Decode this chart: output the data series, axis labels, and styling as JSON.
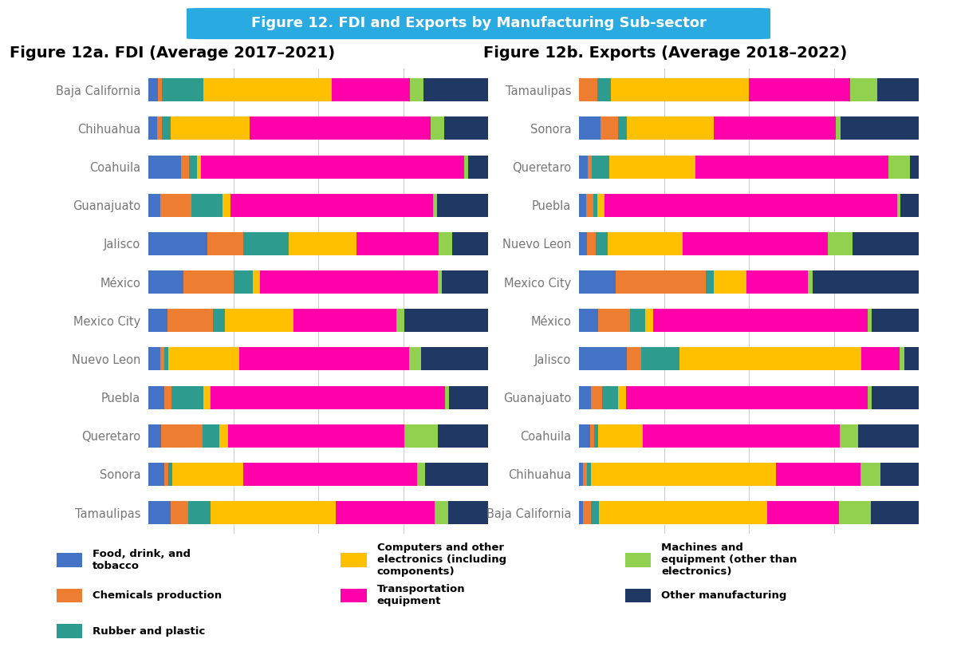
{
  "title": "Figure 12. FDI and Exports by Manufacturing Sub-sector",
  "title_left": "Figure 12a. FDI (Average 2017–2021)",
  "title_right": "Figure 12b. Exports (Average 2018–2022)",
  "legend_labels": [
    "Food, drink, and\ntobacco",
    "Chemicals production",
    "Rubber and plastic",
    "Computers and other\nelectronics (including\ncomponents)",
    "Transportation\nequipment",
    "Machines and\nequipment (other than\nelectronics)",
    "Other manufacturing"
  ],
  "colors": [
    "#4472C4",
    "#ED7D31",
    "#2E9B8F",
    "#FFC000",
    "#FF00AA",
    "#92D050",
    "#1F3864"
  ],
  "fdi_regions": [
    "Baja California",
    "Chihuahua",
    "Coahuila",
    "Guanajuato",
    "Jalisco",
    "México",
    "Mexico City",
    "Nuevo Leon",
    "Puebla",
    "Queretaro",
    "Sonora",
    "Tamaulipas"
  ],
  "fdi_data": [
    [
      2,
      1,
      9,
      28,
      17,
      3,
      14
    ],
    [
      2,
      1,
      2,
      18,
      41,
      3,
      10
    ],
    [
      8,
      2,
      2,
      1,
      65,
      1,
      5
    ],
    [
      3,
      8,
      8,
      2,
      52,
      1,
      13
    ],
    [
      13,
      8,
      10,
      15,
      18,
      3,
      8
    ],
    [
      9,
      13,
      5,
      2,
      46,
      1,
      12
    ],
    [
      5,
      12,
      3,
      18,
      27,
      2,
      22
    ],
    [
      3,
      1,
      1,
      18,
      43,
      3,
      17
    ],
    [
      4,
      2,
      8,
      2,
      60,
      1,
      10
    ],
    [
      3,
      10,
      4,
      2,
      42,
      8,
      12
    ],
    [
      4,
      1,
      1,
      18,
      44,
      2,
      16
    ],
    [
      5,
      4,
      5,
      28,
      22,
      3,
      9
    ]
  ],
  "exports_regions": [
    "Tamaulipas",
    "Sonora",
    "Queretaro",
    "Puebla",
    "Nuevo Leon",
    "Mexico City",
    "México",
    "Jalisco",
    "Guanajuato",
    "Coahuila",
    "Chihuahua",
    "Baja California"
  ],
  "exports_data": [
    [
      0,
      4,
      3,
      30,
      22,
      6,
      9
    ],
    [
      5,
      4,
      2,
      20,
      28,
      1,
      18
    ],
    [
      2,
      1,
      4,
      20,
      45,
      5,
      2
    ],
    [
      2,
      2,
      1,
      2,
      80,
      1,
      5
    ],
    [
      2,
      2,
      3,
      18,
      35,
      6,
      16
    ],
    [
      9,
      22,
      2,
      8,
      15,
      1,
      26
    ],
    [
      5,
      8,
      4,
      2,
      55,
      1,
      12
    ],
    [
      10,
      3,
      8,
      38,
      8,
      1,
      3
    ],
    [
      3,
      3,
      4,
      2,
      62,
      1,
      12
    ],
    [
      3,
      1,
      1,
      12,
      52,
      5,
      16
    ],
    [
      1,
      1,
      1,
      48,
      22,
      5,
      10
    ],
    [
      1,
      2,
      2,
      42,
      18,
      8,
      12
    ]
  ],
  "bg_color": "#FFFFFF",
  "header_bg": "#29ABE2",
  "header_fg": "#FFFFFF",
  "bar_height": 0.6,
  "tick_color": "#777777",
  "title_fontsize": 13,
  "subtitle_fontsize": 14,
  "tick_fontsize": 10.5,
  "legend_fontsize": 9.5
}
